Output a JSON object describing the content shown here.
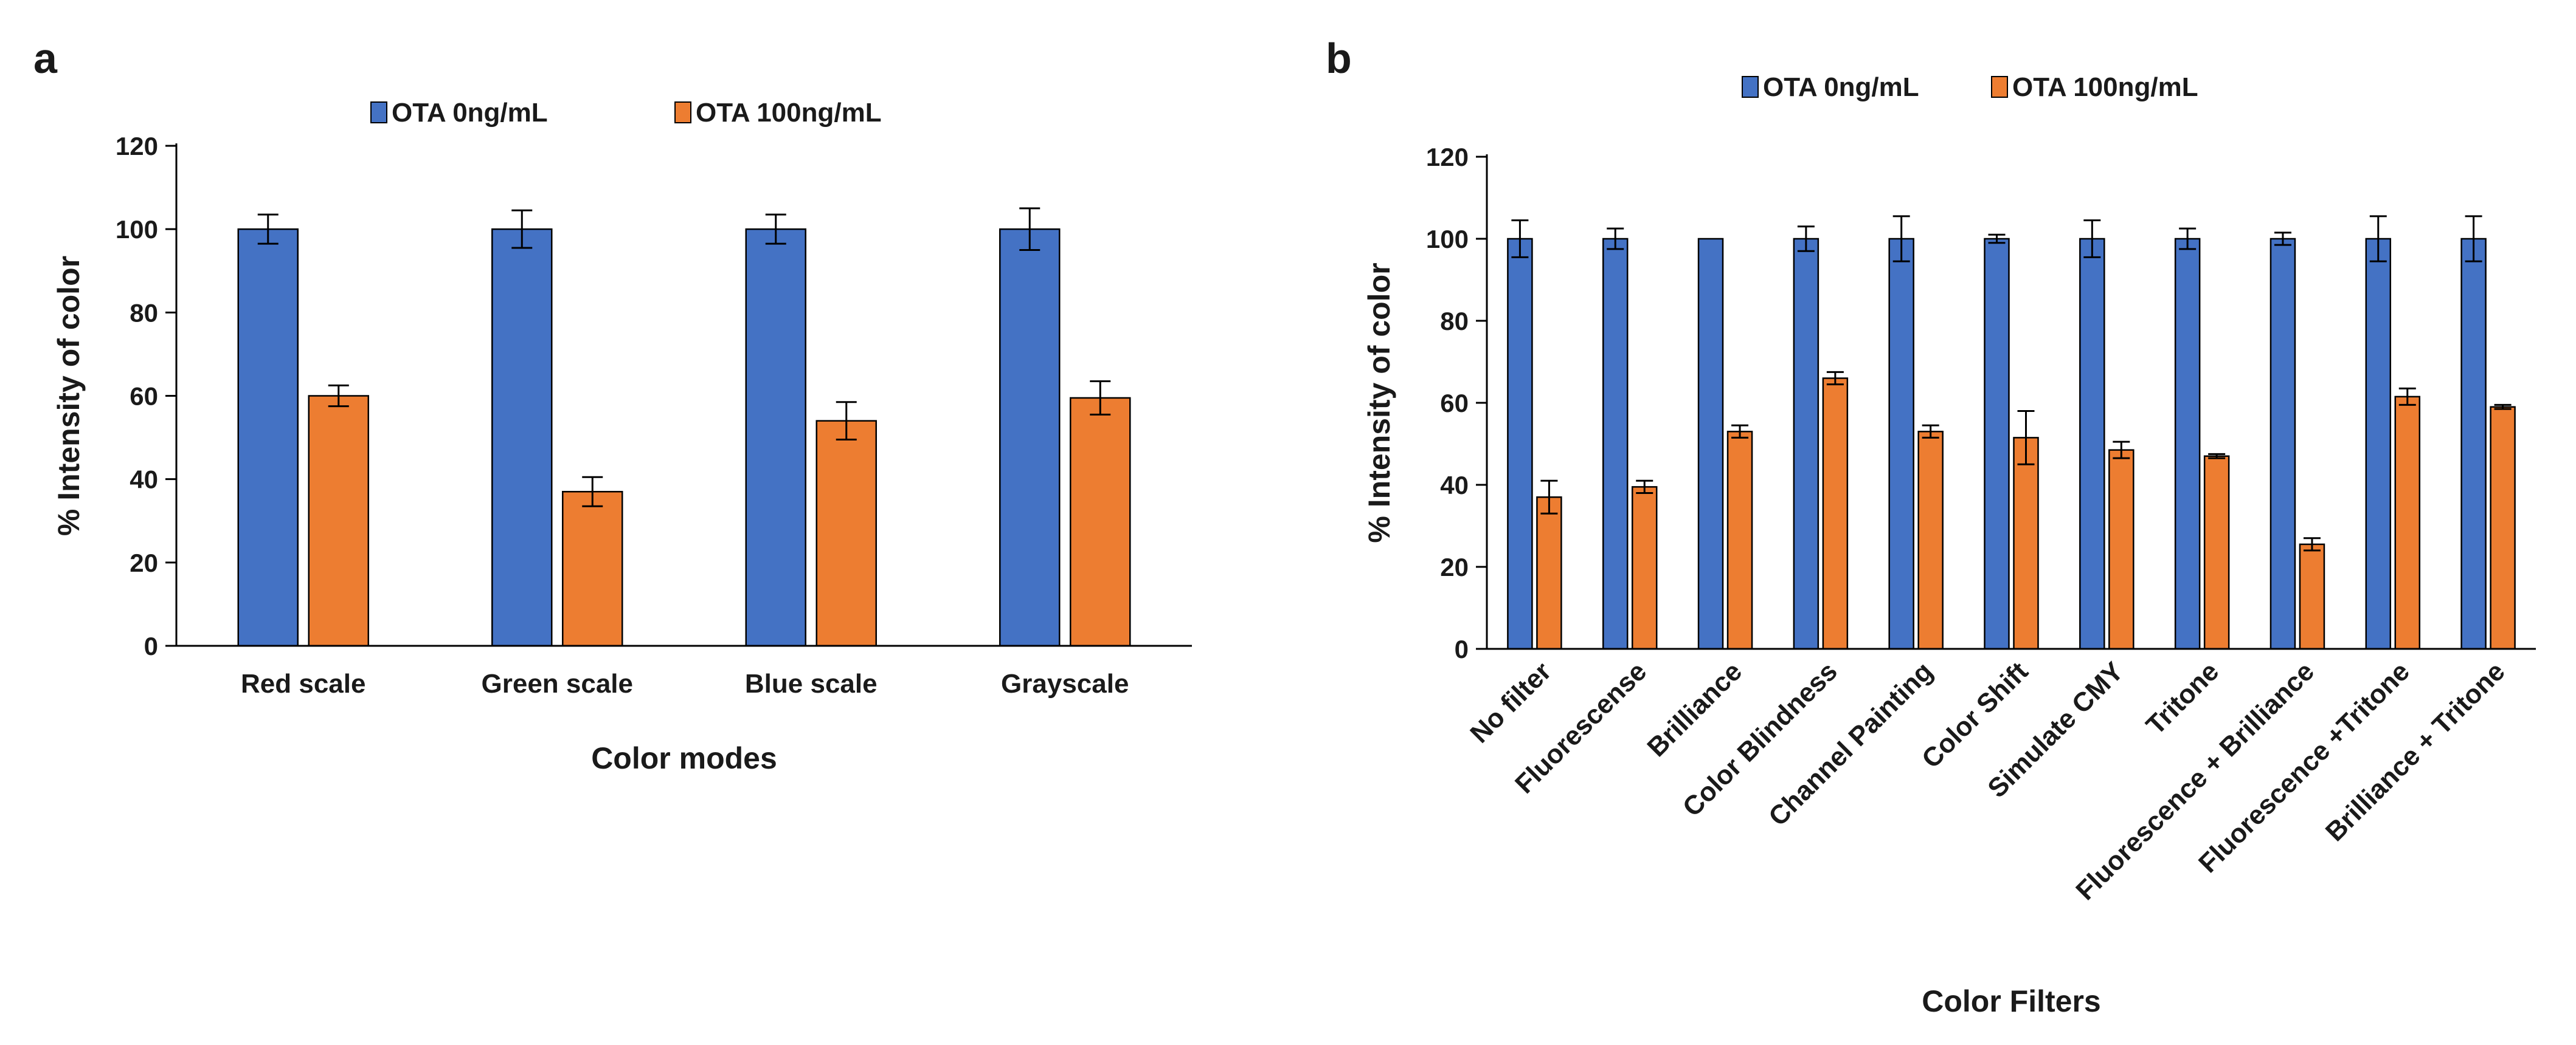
{
  "colors": {
    "series0": "#4472c4",
    "series1": "#ed7d31",
    "axis": "#000000"
  },
  "chart_data": [
    {
      "panel_label": "a",
      "type": "bar",
      "xlabel": "Color modes",
      "ylabel": "% Intensity of color",
      "ylim": [
        0,
        120
      ],
      "yticks": [
        0,
        20,
        40,
        60,
        80,
        100,
        120
      ],
      "grid": false,
      "legend_position": "top-center",
      "categories": [
        "Red scale",
        "Green scale",
        "Blue scale",
        "Grayscale"
      ],
      "series": [
        {
          "name": "OTA 0ng/mL",
          "color": "#4472c4",
          "values": [
            100,
            100,
            100,
            100
          ],
          "errors": [
            3.5,
            4.5,
            3.5,
            5
          ]
        },
        {
          "name": "OTA 100ng/mL",
          "color": "#ed7d31",
          "values": [
            60,
            37,
            54,
            59.5
          ],
          "errors": [
            2.5,
            3.5,
            4.5,
            4
          ]
        }
      ]
    },
    {
      "panel_label": "b",
      "type": "bar",
      "xlabel": "Color Filters",
      "ylabel": "% Intensity  of color",
      "ylim": [
        0,
        120
      ],
      "yticks": [
        0,
        20,
        40,
        60,
        80,
        100,
        120
      ],
      "grid": false,
      "legend_position": "top-center",
      "categories": [
        "No filter",
        "Fluorescense",
        "Brilliance",
        "Color Blindness",
        "Channel Painting",
        "Color Shift",
        "Simulate CMY",
        "Tritone",
        "Fluorescence + Brilliance",
        "Fluorescence +Tritone",
        "Brilliance + Tritone"
      ],
      "series": [
        {
          "name": "OTA 0ng/mL",
          "color": "#4472c4",
          "values": [
            100,
            100,
            100,
            100,
            100,
            100,
            100,
            100,
            100,
            100,
            100
          ],
          "errors": [
            4.5,
            2.5,
            0,
            3,
            5.5,
            1,
            4.5,
            2.5,
            1.5,
            5.5,
            5.5
          ]
        },
        {
          "name": "OTA 100ng/mL",
          "color": "#ed7d31",
          "values": [
            37,
            39.5,
            53,
            66,
            53,
            51.5,
            48.5,
            47,
            25.5,
            61.5,
            59
          ],
          "errors": [
            4,
            1.5,
            1.5,
            1.5,
            1.5,
            6.5,
            2,
            0.5,
            1.5,
            2,
            0.5
          ]
        }
      ]
    }
  ]
}
